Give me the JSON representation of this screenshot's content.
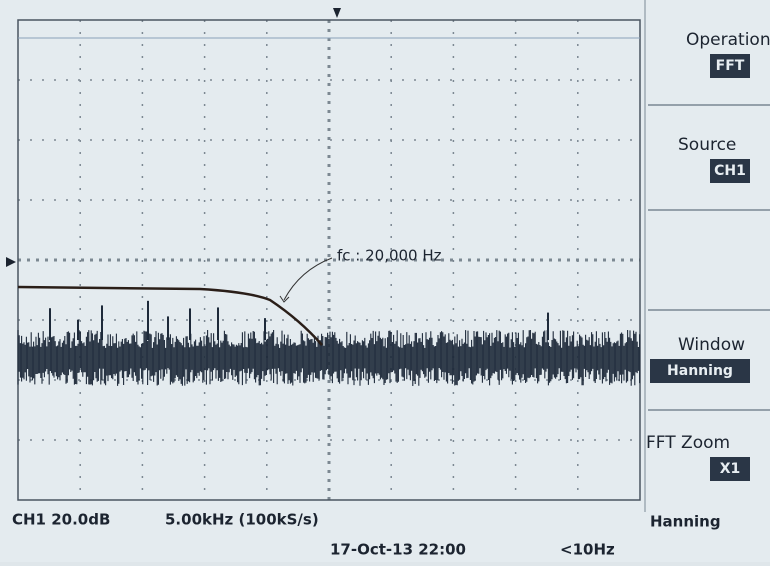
{
  "menu": [
    {
      "label": "Operation",
      "value": "FFT"
    },
    {
      "label": "Source",
      "value": "CH1"
    },
    {
      "label": "Window",
      "value": "Hanning"
    },
    {
      "label": "FFT Zoom",
      "value": "X1"
    }
  ],
  "annotation": "fc : 20,000 Hz",
  "status": {
    "scale": "CH1 20.0dB",
    "timebase": "5.00kHz (100kS/s)",
    "date": "17-Oct-13 22:00",
    "frequency": "<10Hz",
    "window": "Hanning"
  }
}
